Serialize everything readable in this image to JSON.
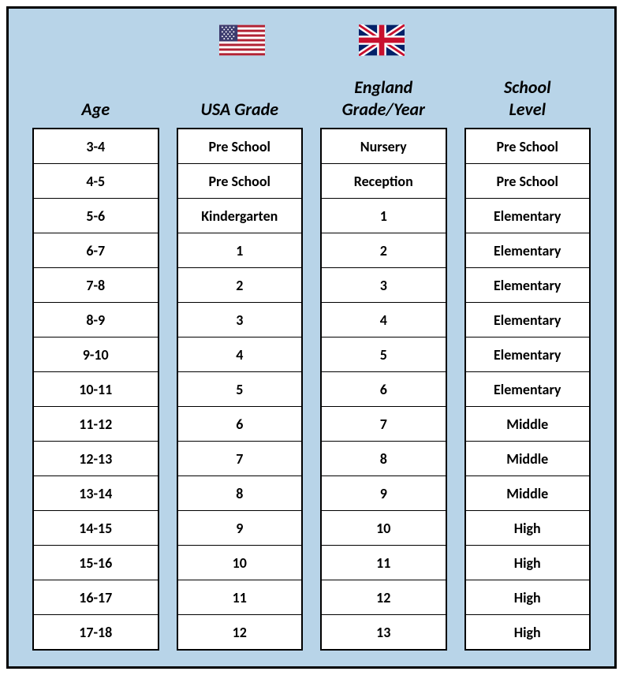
{
  "colors": {
    "background": "#b8d4e8",
    "border": "#000000",
    "cell_bg": "#ffffff",
    "text": "#000000"
  },
  "typography": {
    "header_fontsize": 22,
    "header_style": "bold italic",
    "cell_fontsize": 18,
    "cell_style": "bold",
    "font_family": "Calibri, Arial, sans-serif"
  },
  "columns": [
    {
      "header_line1": "",
      "header_line2": "Age",
      "flag": null,
      "rows": [
        "3-4",
        "4-5",
        "5-6",
        "6-7",
        "7-8",
        "8-9",
        "9-10",
        "10-11",
        "11-12",
        "12-13",
        "13-14",
        "14-15",
        "15-16",
        "16-17",
        "17-18"
      ]
    },
    {
      "header_line1": "",
      "header_line2": "USA Grade",
      "flag": "usa",
      "rows": [
        "Pre School",
        "Pre School",
        "Kindergarten",
        "1",
        "2",
        "3",
        "4",
        "5",
        "6",
        "7",
        "8",
        "9",
        "10",
        "11",
        "12"
      ]
    },
    {
      "header_line1": "England",
      "header_line2": "Grade/Year",
      "flag": "uk",
      "rows": [
        "Nursery",
        "Reception",
        "1",
        "2",
        "3",
        "4",
        "5",
        "6",
        "7",
        "8",
        "9",
        "10",
        "11",
        "12",
        "13"
      ]
    },
    {
      "header_line1": "School",
      "header_line2": "Level",
      "flag": null,
      "rows": [
        "Pre School",
        "Pre School",
        "Elementary",
        "Elementary",
        "Elementary",
        "Elementary",
        "Elementary",
        "Elementary",
        "Middle",
        "Middle",
        "Middle",
        "High",
        "High",
        "High",
        "High"
      ]
    }
  ]
}
